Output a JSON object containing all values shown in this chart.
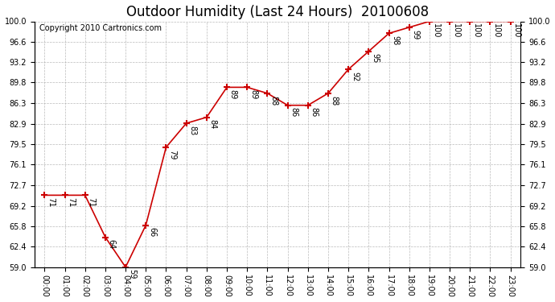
{
  "title": "Outdoor Humidity (Last 24 Hours)  20100608",
  "copyright": "Copyright 2010 Cartronics.com",
  "x_labels": [
    "00:00",
    "01:00",
    "02:00",
    "03:00",
    "04:00",
    "05:00",
    "06:00",
    "07:00",
    "08:00",
    "09:00",
    "10:00",
    "11:00",
    "12:00",
    "13:00",
    "14:00",
    "15:00",
    "16:00",
    "17:00",
    "18:00",
    "19:00",
    "20:00",
    "21:00",
    "22:00",
    "23:00"
  ],
  "y_values": [
    71,
    71,
    71,
    64,
    59,
    66,
    79,
    83,
    84,
    89,
    89,
    88,
    86,
    86,
    88,
    92,
    95,
    98,
    99,
    100,
    100,
    100,
    100,
    100
  ],
  "ylim": [
    59.0,
    100.0
  ],
  "yticks": [
    59.0,
    62.4,
    65.8,
    69.2,
    72.7,
    76.1,
    79.5,
    82.9,
    86.3,
    89.8,
    93.2,
    96.6,
    100.0
  ],
  "line_color": "#cc0000",
  "bg_color": "#ffffff",
  "grid_color": "#aaaaaa",
  "title_fontsize": 12,
  "copyright_fontsize": 7,
  "label_fontsize": 7,
  "annotation_fontsize": 7
}
